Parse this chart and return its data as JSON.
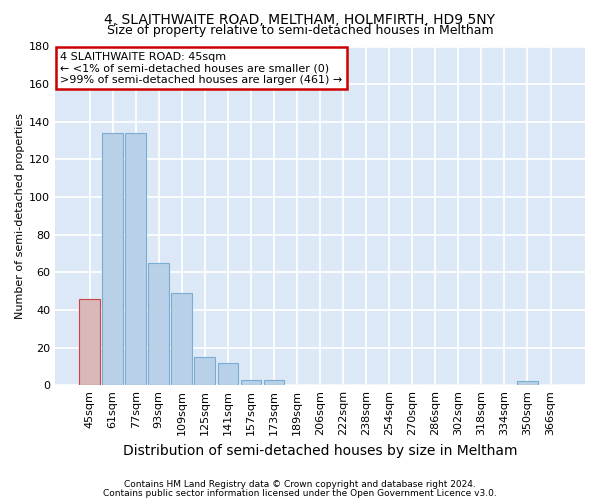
{
  "title": "4, SLAITHWAITE ROAD, MELTHAM, HOLMFIRTH, HD9 5NY",
  "subtitle": "Size of property relative to semi-detached houses in Meltham",
  "xlabel": "Distribution of semi-detached houses by size in Meltham",
  "ylabel": "Number of semi-detached properties",
  "categories": [
    "45sqm",
    "61sqm",
    "77sqm",
    "93sqm",
    "109sqm",
    "125sqm",
    "141sqm",
    "157sqm",
    "173sqm",
    "189sqm",
    "206sqm",
    "222sqm",
    "238sqm",
    "254sqm",
    "270sqm",
    "286sqm",
    "302sqm",
    "318sqm",
    "334sqm",
    "350sqm",
    "366sqm"
  ],
  "values": [
    46,
    134,
    134,
    65,
    49,
    15,
    12,
    3,
    3,
    0,
    0,
    0,
    0,
    0,
    0,
    0,
    0,
    0,
    0,
    2,
    0
  ],
  "bar_color": "#b8d0e8",
  "bar_edge_color": "#7aadd4",
  "highlight_bar_color": "#d8b8b8",
  "highlight_bar_edge_color": "#cc4444",
  "ylim": [
    0,
    180
  ],
  "yticks": [
    0,
    20,
    40,
    60,
    80,
    100,
    120,
    140,
    160,
    180
  ],
  "annotation_line1": "4 SLAITHWAITE ROAD: 45sqm",
  "annotation_line2": "← <1% of semi-detached houses are smaller (0)",
  "annotation_line3": ">99% of semi-detached houses are larger (461) →",
  "annotation_box_facecolor": "#ffffff",
  "annotation_box_edgecolor": "#cc0000",
  "fig_bg_color": "#ffffff",
  "plot_bg_color": "#dce8f5",
  "grid_color": "#ffffff",
  "footer_line1": "Contains HM Land Registry data © Crown copyright and database right 2024.",
  "footer_line2": "Contains public sector information licensed under the Open Government Licence v3.0.",
  "title_fontsize": 10,
  "subtitle_fontsize": 9,
  "xlabel_fontsize": 10,
  "ylabel_fontsize": 8,
  "tick_fontsize": 8,
  "annotation_fontsize": 8,
  "footer_fontsize": 6.5
}
